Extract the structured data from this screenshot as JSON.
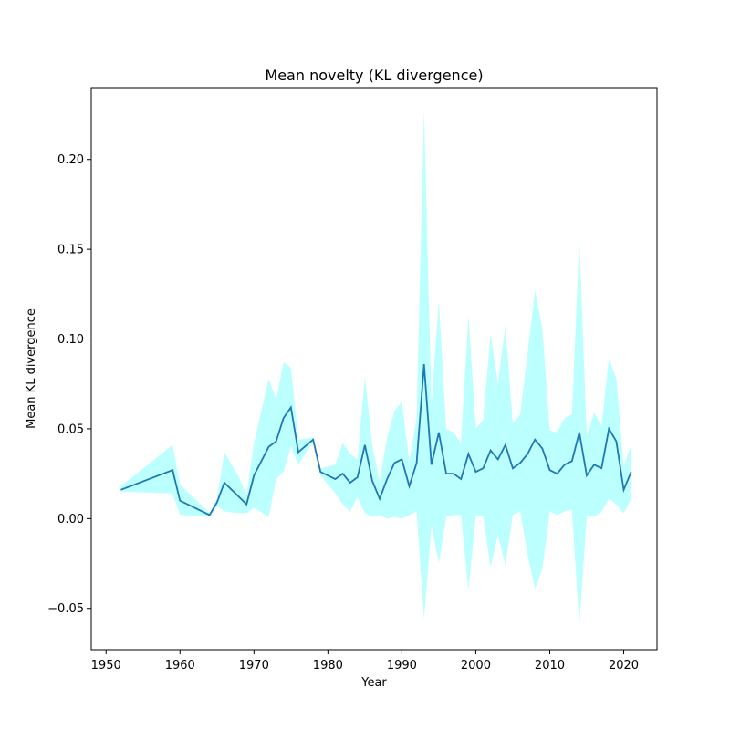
{
  "chart_data": {
    "type": "line",
    "title": "Mean novelty (KL divergence)",
    "xlabel": "Year",
    "ylabel": "Mean KL divergence",
    "xlim": [
      1948,
      2024.5
    ],
    "ylim": [
      -0.073,
      0.24
    ],
    "xticks": [
      1950,
      1960,
      1970,
      1980,
      1990,
      2000,
      2010,
      2020
    ],
    "xtick_labels": [
      "1950",
      "1960",
      "1970",
      "1980",
      "1990",
      "2000",
      "2010",
      "2020"
    ],
    "yticks": [
      -0.05,
      0.0,
      0.05,
      0.1,
      0.15,
      0.2
    ],
    "ytick_labels": [
      "−0.05",
      "0.00",
      "0.05",
      "0.10",
      "0.15",
      "0.20"
    ],
    "grid": false,
    "colors": {
      "line": "#1f77b4",
      "band": "#bbffff"
    },
    "series": [
      {
        "x": [
          1952,
          1959,
          1960,
          1964,
          1965,
          1966,
          1968,
          1969,
          1970,
          1972,
          1973,
          1974,
          1975,
          1976,
          1978,
          1979,
          1981,
          1982,
          1983,
          1984,
          1985,
          1986,
          1987,
          1988,
          1989,
          1990,
          1991,
          1992,
          1993,
          1994,
          1995,
          1996,
          1997,
          1998,
          1999,
          2000,
          2001,
          2002,
          2003,
          2004,
          2005,
          2006,
          2007,
          2008,
          2009,
          2010,
          2011,
          2012,
          2013,
          2014,
          2015,
          2016,
          2017,
          2018,
          2019,
          2020,
          2021
        ],
        "values": [
          0.016,
          0.027,
          0.01,
          0.002,
          0.009,
          0.02,
          0.012,
          0.008,
          0.024,
          0.04,
          0.043,
          0.056,
          0.062,
          0.037,
          0.044,
          0.026,
          0.022,
          0.025,
          0.02,
          0.023,
          0.041,
          0.021,
          0.011,
          0.022,
          0.031,
          0.033,
          0.018,
          0.031,
          0.086,
          0.03,
          0.048,
          0.025,
          0.025,
          0.022,
          0.036,
          0.026,
          0.028,
          0.038,
          0.033,
          0.041,
          0.028,
          0.031,
          0.036,
          0.044,
          0.039,
          0.027,
          0.025,
          0.03,
          0.032,
          0.048,
          0.024,
          0.03,
          0.028,
          0.05,
          0.043,
          0.016,
          0.026
        ],
        "upper": [
          0.018,
          0.041,
          0.019,
          0.003,
          0.011,
          0.037,
          0.023,
          0.013,
          0.042,
          0.078,
          0.066,
          0.087,
          0.084,
          0.044,
          0.045,
          0.028,
          0.03,
          0.042,
          0.036,
          0.033,
          0.079,
          0.041,
          0.021,
          0.045,
          0.06,
          0.065,
          0.032,
          0.056,
          0.228,
          0.064,
          0.121,
          0.05,
          0.048,
          0.042,
          0.113,
          0.05,
          0.055,
          0.103,
          0.075,
          0.108,
          0.053,
          0.058,
          0.092,
          0.127,
          0.106,
          0.049,
          0.048,
          0.056,
          0.058,
          0.156,
          0.046,
          0.059,
          0.052,
          0.089,
          0.078,
          0.029,
          0.041
        ],
        "lower": [
          0.015,
          0.014,
          0.002,
          0.001,
          0.007,
          0.004,
          0.003,
          0.003,
          0.006,
          0.001,
          0.022,
          0.026,
          0.04,
          0.03,
          0.043,
          0.024,
          0.014,
          0.008,
          0.004,
          0.012,
          0.003,
          0.001,
          0.002,
          0.0,
          0.001,
          0.0,
          0.002,
          0.004,
          -0.056,
          -0.004,
          -0.025,
          0.001,
          0.002,
          0.002,
          -0.04,
          0.002,
          0.001,
          -0.027,
          -0.009,
          -0.026,
          0.002,
          0.004,
          -0.02,
          -0.039,
          -0.028,
          0.004,
          0.002,
          0.004,
          0.005,
          -0.06,
          0.002,
          0.001,
          0.004,
          0.011,
          0.008,
          0.003,
          0.011
        ]
      }
    ]
  }
}
